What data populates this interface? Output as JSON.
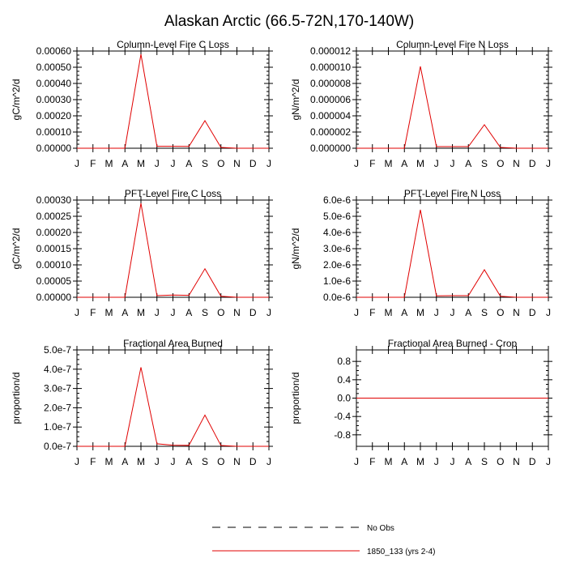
{
  "figure": {
    "title": "Alaskan Arctic (66.5-72N,170-140W)"
  },
  "months": [
    "J",
    "F",
    "M",
    "A",
    "M",
    "J",
    "J",
    "A",
    "S",
    "O",
    "N",
    "D",
    "J"
  ],
  "legend": {
    "position": "bottom-center",
    "entries": [
      {
        "label": "No Obs",
        "style": "dashed",
        "color": "#000000"
      },
      {
        "label": "1850_133 (yrs 2-4)",
        "style": "solid",
        "color": "#e00000"
      }
    ]
  },
  "chart_data": [
    {
      "type": "line",
      "title": "Column-Level Fire C Loss",
      "ylabel": "gC/m^2/d",
      "x": [
        "J",
        "F",
        "M",
        "A",
        "M",
        "J",
        "J",
        "A",
        "S",
        "O",
        "N",
        "D",
        "J"
      ],
      "ylim": [
        0,
        0.0006
      ],
      "yticks": [
        0,
        0.0001,
        0.0002,
        0.0003,
        0.0004,
        0.0005,
        0.0006
      ],
      "ytick_labels": [
        "0.00000",
        "0.00010",
        "0.00020",
        "0.00030",
        "0.00040",
        "0.00050",
        "0.00060"
      ],
      "series": [
        {
          "name": "1850_133 (yrs 2-4)",
          "color": "#e00000",
          "values": [
            0,
            0,
            0,
            0,
            0.00058,
            1.2e-05,
            1.2e-05,
            1.1e-05,
            0.00017,
            5e-06,
            0,
            0,
            0
          ]
        }
      ]
    },
    {
      "type": "line",
      "title": "Column-Level Fire N Loss",
      "ylabel": "gN/m^2/d",
      "x": [
        "J",
        "F",
        "M",
        "A",
        "M",
        "J",
        "J",
        "A",
        "S",
        "O",
        "N",
        "D",
        "J"
      ],
      "ylim": [
        0,
        1.2e-05
      ],
      "yticks": [
        0,
        2e-06,
        4e-06,
        6e-06,
        8e-06,
        1e-05,
        1.2e-05
      ],
      "ytick_labels": [
        "0.000000",
        "0.000002",
        "0.000004",
        "0.000006",
        "0.000008",
        "0.000010",
        "0.000012"
      ],
      "series": [
        {
          "name": "1850_133 (yrs 2-4)",
          "color": "#e00000",
          "values": [
            0,
            0,
            0,
            0,
            1.01e-05,
            2e-07,
            2e-07,
            2e-07,
            2.9e-06,
            1e-07,
            0,
            0,
            0
          ]
        }
      ]
    },
    {
      "type": "line",
      "title": "PFT-Level Fire C Loss",
      "ylabel": "gC/m^2/d",
      "x": [
        "J",
        "F",
        "M",
        "A",
        "M",
        "J",
        "J",
        "A",
        "S",
        "O",
        "N",
        "D",
        "J"
      ],
      "ylim": [
        0,
        0.0003
      ],
      "yticks": [
        0,
        5e-05,
        0.0001,
        0.00015,
        0.0002,
        0.00025,
        0.0003
      ],
      "ytick_labels": [
        "0.00000",
        "0.00005",
        "0.00010",
        "0.00015",
        "0.00020",
        "0.00025",
        "0.00030"
      ],
      "series": [
        {
          "name": "1850_133 (yrs 2-4)",
          "color": "#e00000",
          "values": [
            0,
            0,
            0,
            0,
            0.00029,
            5e-06,
            7e-06,
            6e-06,
            8.8e-05,
            3e-06,
            0,
            0,
            0
          ]
        }
      ]
    },
    {
      "type": "line",
      "title": "PFT-Level Fire N Loss",
      "ylabel": "gN/m^2/d",
      "x": [
        "J",
        "F",
        "M",
        "A",
        "M",
        "J",
        "J",
        "A",
        "S",
        "O",
        "N",
        "D",
        "J"
      ],
      "ylim": [
        0,
        6e-06
      ],
      "yticks": [
        0,
        1e-06,
        2e-06,
        3e-06,
        4e-06,
        5e-06,
        6e-06
      ],
      "ytick_labels": [
        "0.0e-6",
        "1.0e-6",
        "2.0e-6",
        "3.0e-6",
        "4.0e-6",
        "5.0e-6",
        "6.0e-6"
      ],
      "series": [
        {
          "name": "1850_133 (yrs 2-4)",
          "color": "#e00000",
          "values": [
            0,
            0,
            0,
            0,
            5.4e-06,
            9e-08,
            1e-07,
            1e-07,
            1.7e-06,
            6e-08,
            0,
            0,
            0
          ]
        }
      ]
    },
    {
      "type": "line",
      "title": "Fractional Area Burned",
      "ylabel": "proportion/d",
      "x": [
        "J",
        "F",
        "M",
        "A",
        "M",
        "J",
        "J",
        "A",
        "S",
        "O",
        "N",
        "D",
        "J"
      ],
      "ylim": [
        0,
        5e-07
      ],
      "yticks": [
        0,
        1e-07,
        2e-07,
        3e-07,
        4e-07,
        5e-07
      ],
      "ytick_labels": [
        "0.0e-7",
        "1.0e-7",
        "2.0e-7",
        "3.0e-7",
        "4.0e-7",
        "5.0e-7"
      ],
      "series": [
        {
          "name": "1850_133 (yrs 2-4)",
          "color": "#e00000",
          "values": [
            0,
            0,
            0,
            0,
            4.1e-07,
            1.3e-08,
            6e-09,
            5e-09,
            1.62e-07,
            4e-09,
            0,
            0,
            0
          ]
        }
      ]
    },
    {
      "type": "line",
      "title": "Fractional Area Burned - Crop",
      "ylabel": "proportion/d",
      "x": [
        "J",
        "F",
        "M",
        "A",
        "M",
        "J",
        "J",
        "A",
        "S",
        "O",
        "N",
        "D",
        "J"
      ],
      "ylim": [
        -1.05,
        1.05
      ],
      "yticks": [
        -0.8,
        -0.4,
        0,
        0.4,
        0.8
      ],
      "ytick_labels": [
        "-0.8",
        "-0.4",
        "0.0",
        "0.4",
        "0.8"
      ],
      "series": [
        {
          "name": "1850_133 (yrs 2-4)",
          "color": "#e00000",
          "values": [
            0,
            0,
            0,
            0,
            0,
            0,
            0,
            0,
            0,
            0,
            0,
            0,
            0
          ]
        }
      ]
    }
  ]
}
